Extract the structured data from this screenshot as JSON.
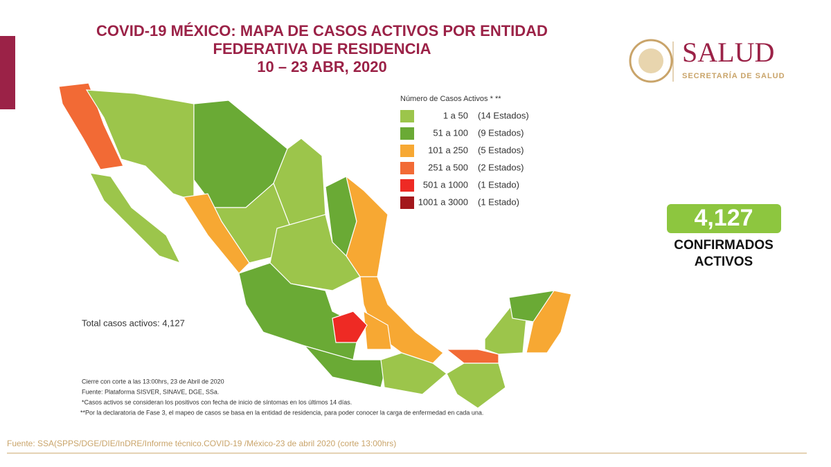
{
  "header": {
    "title_lines": [
      "COVID-19 MÉXICO: MAPA DE CASOS ACTIVOS POR ENTIDAD",
      "FEDERATIVA DE RESIDENCIA",
      "10 – 23 ABR, 2020"
    ],
    "logo_title": "SALUD",
    "logo_subtitle": "SECRETARÍA DE SALUD"
  },
  "legend": {
    "title": "Número de Casos Activos * **",
    "items": [
      {
        "range": "1 a 50",
        "count": "(14 Estados)",
        "color": "#9cc54b"
      },
      {
        "range": "51 a 100",
        "count": "(9 Estados)",
        "color": "#6aaa35"
      },
      {
        "range": "101 a 250",
        "count": "(5 Estados)",
        "color": "#f7a833"
      },
      {
        "range": "251 a 500",
        "count": "(2 Estados)",
        "color": "#f26a35"
      },
      {
        "range": "501 a 1000",
        "count": "(1 Estado)",
        "color": "#ee2a24"
      },
      {
        "range": "1001 a 3000",
        "count": "(1 Estado)",
        "color": "#a3171c"
      }
    ]
  },
  "total_text": "Total casos activos: 4,127",
  "kpi": {
    "value": "4,127",
    "label_lines": [
      "CONFIRMADOS",
      "ACTIVOS"
    ]
  },
  "notes": [
    "Cierre con corte a las 13:00hrs, 23 de Abril de 2020",
    "Fuente: Plataforma SISVER, SINAVE, DGE, SSa.",
    "*Casos activos se consideran los positivos con fecha de inicio de síntomas en los últimos 14 días.",
    "**Por la declaratoria de Fase 3, el mapeo de casos se basa en la entidad de residencia, para poder conocer la carga de enfermedad en cada una."
  ],
  "footer": "Fuente: SSA(SPPS/DGE/DIE/InDRE/Informe técnico.COVID-19 /México-23 de abril 2020 (corte 13:00hrs)"
}
